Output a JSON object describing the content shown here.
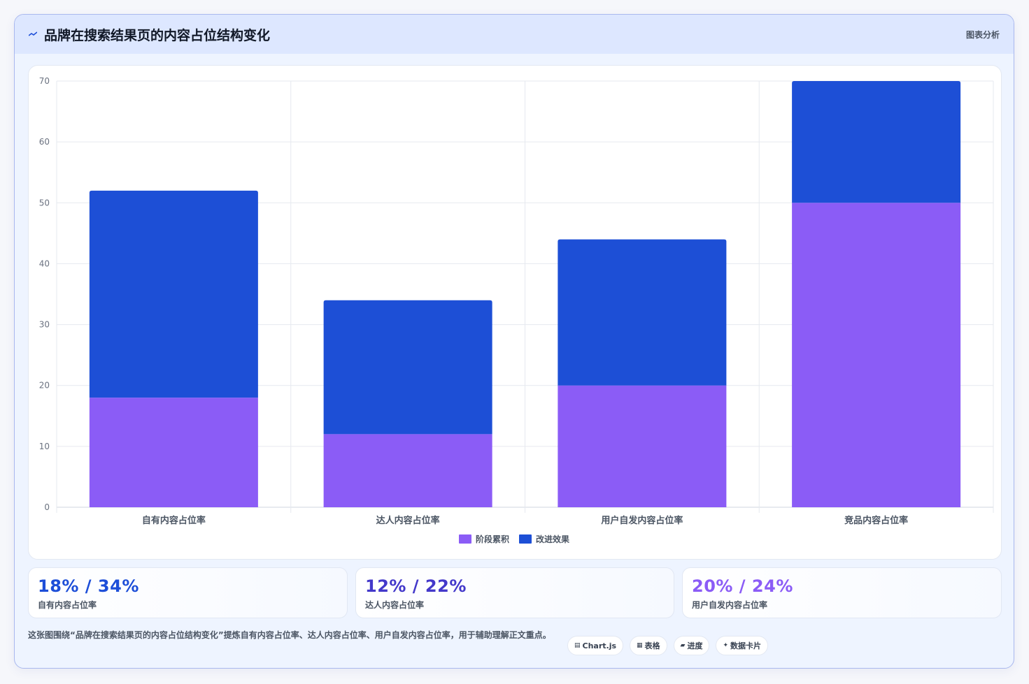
{
  "header": {
    "title": "品牌在搜索结果页的内容占位结构变化",
    "title_icon": "trend-line-icon",
    "link": "图表分析"
  },
  "chart_data": {
    "type": "bar",
    "stacked": true,
    "categories": [
      "自有内容占位率",
      "达人内容占位率",
      "用户自发内容占位率",
      "竞品内容占位率"
    ],
    "series": [
      {
        "name": "阶段累积",
        "color": "#8b5cf6",
        "values": [
          18,
          12,
          20,
          50
        ]
      },
      {
        "name": "改进效果",
        "color": "#1d4fd6",
        "values": [
          34,
          22,
          24,
          20
        ]
      }
    ],
    "ylim": [
      0,
      70
    ],
    "yticks": [
      0,
      10,
      20,
      30,
      40,
      50,
      60,
      70
    ],
    "grid": true,
    "legend": "bottom"
  },
  "stats": [
    {
      "value": "18% / 34%",
      "label": "自有内容占位率",
      "color": "#1d4ed8"
    },
    {
      "value": "12% / 22%",
      "label": "达人内容占位率",
      "color": "#4338ca"
    },
    {
      "value": "20% / 24%",
      "label": "用户自发内容占位率",
      "color": "#8b5cf6"
    }
  ],
  "footer": {
    "text": "这张图围绕“品牌在搜索结果页的内容占位结构变化”提炼自有内容占位率、达人内容占位率、用户自发内容占位率，用于辅助理解正文重点。"
  },
  "tags": [
    {
      "icon": "chart-icon",
      "glyph": "▤",
      "label": "Chart.js"
    },
    {
      "icon": "table-icon",
      "glyph": "▦",
      "label": "表格"
    },
    {
      "icon": "progress-icon",
      "glyph": "▰",
      "label": "进度"
    },
    {
      "icon": "sparkle-icon",
      "glyph": "✦",
      "label": "数据卡片"
    }
  ]
}
